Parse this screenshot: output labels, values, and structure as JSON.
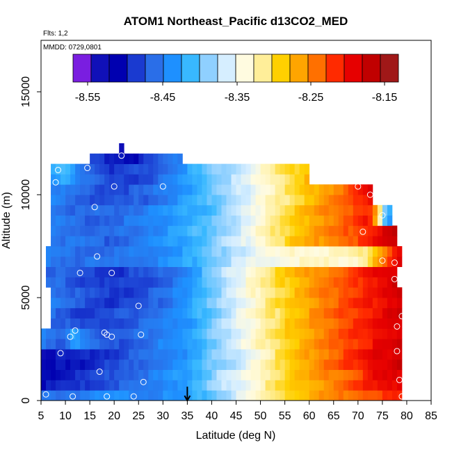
{
  "chart_data": {
    "type": "heatmap",
    "title": "ATOM1 Northeast_Pacific d13CO2_MED",
    "flights_label": "Flts: 1,2",
    "dates_label": "MMDD: 0729,0801",
    "xlabel": "Latitude (deg N)",
    "ylabel": "Altitude (m)",
    "xlim": [
      5,
      85
    ],
    "ylim": [
      0,
      17500
    ],
    "x_ticks": [
      "5",
      "10",
      "15",
      "20",
      "25",
      "30",
      "35",
      "40",
      "45",
      "50",
      "55",
      "60",
      "65",
      "70",
      "75",
      "80",
      "85"
    ],
    "y_ticks": [
      "0",
      "5000",
      "10000",
      "15000"
    ],
    "colorbar": {
      "tick_labels": [
        "-8.55",
        "-8.45",
        "-8.35",
        "-8.25",
        "-8.15"
      ],
      "colors": [
        "#7a1ee0",
        "#1010b8",
        "#0000b0",
        "#1a3ad0",
        "#2a6ee8",
        "#1e90ff",
        "#38b8ff",
        "#8fd0ff",
        "#d6eeff",
        "#fffbe0",
        "#ffee99",
        "#ffd000",
        "#ffa500",
        "#ff7000",
        "#ff2a00",
        "#e60000",
        "#c00000",
        "#a01818"
      ]
    },
    "marker": {
      "latitude": 35,
      "symbol": "down-arrow"
    },
    "cell_size": {
      "lat_deg": 1,
      "alt_m": 500
    },
    "bands": [
      {
        "alt": [
          0,
          500
        ],
        "lat": [
          5,
          79
        ],
        "anchors": [
          [
            5,
            -8.47
          ],
          [
            20,
            -8.45
          ],
          [
            34,
            -8.45
          ],
          [
            38,
            -8.42
          ],
          [
            43,
            -8.38
          ],
          [
            48,
            -8.34
          ],
          [
            53,
            -8.3
          ],
          [
            58,
            -8.27
          ],
          [
            65,
            -8.24
          ],
          [
            72,
            -8.21
          ],
          [
            79,
            -8.2
          ]
        ]
      },
      {
        "alt": [
          500,
          1500
        ],
        "lat": [
          5,
          79
        ],
        "anchors": [
          [
            5,
            -8.52
          ],
          [
            12,
            -8.51
          ],
          [
            20,
            -8.48
          ],
          [
            28,
            -8.46
          ],
          [
            33,
            -8.44
          ],
          [
            38,
            -8.41
          ],
          [
            43,
            -8.37
          ],
          [
            48,
            -8.34
          ],
          [
            53,
            -8.3
          ],
          [
            58,
            -8.27
          ],
          [
            64,
            -8.24
          ],
          [
            70,
            -8.21
          ],
          [
            74,
            -8.18
          ],
          [
            79,
            -8.17
          ]
        ]
      },
      {
        "alt": [
          1500,
          2500
        ],
        "lat": [
          5,
          79
        ],
        "anchors": [
          [
            5,
            -8.55
          ],
          [
            8,
            -8.52
          ],
          [
            14,
            -8.51
          ],
          [
            22,
            -8.49
          ],
          [
            30,
            -8.46
          ],
          [
            35,
            -8.44
          ],
          [
            40,
            -8.4
          ],
          [
            45,
            -8.37
          ],
          [
            50,
            -8.33
          ],
          [
            55,
            -8.29
          ],
          [
            60,
            -8.25
          ],
          [
            66,
            -8.22
          ],
          [
            72,
            -8.18
          ],
          [
            79,
            -8.16
          ]
        ]
      },
      {
        "alt": [
          2500,
          3500
        ],
        "lat": [
          5,
          79
        ],
        "anchors": [
          [
            5,
            -8.46
          ],
          [
            10,
            -8.48
          ],
          [
            12,
            -8.42
          ],
          [
            15,
            -8.47
          ],
          [
            20,
            -8.49
          ],
          [
            28,
            -8.46
          ],
          [
            35,
            -8.44
          ],
          [
            40,
            -8.4
          ],
          [
            45,
            -8.36
          ],
          [
            50,
            -8.32
          ],
          [
            56,
            -8.28
          ],
          [
            62,
            -8.24
          ],
          [
            70,
            -8.2
          ],
          [
            79,
            -8.16
          ]
        ]
      },
      {
        "alt": [
          3500,
          4500
        ],
        "lat": [
          7,
          79
        ],
        "anchors": [
          [
            7,
            -8.47
          ],
          [
            14,
            -8.5
          ],
          [
            20,
            -8.49
          ],
          [
            28,
            -8.47
          ],
          [
            35,
            -8.44
          ],
          [
            40,
            -8.4
          ],
          [
            45,
            -8.36
          ],
          [
            50,
            -8.32
          ],
          [
            56,
            -8.28
          ],
          [
            62,
            -8.24
          ],
          [
            70,
            -8.2
          ],
          [
            79,
            -8.16
          ]
        ]
      },
      {
        "alt": [
          4500,
          5500
        ],
        "lat": [
          7,
          79
        ],
        "anchors": [
          [
            7,
            -8.46
          ],
          [
            14,
            -8.49
          ],
          [
            20,
            -8.5
          ],
          [
            26,
            -8.49
          ],
          [
            32,
            -8.46
          ],
          [
            36,
            -8.43
          ],
          [
            40,
            -8.4
          ],
          [
            45,
            -8.36
          ],
          [
            50,
            -8.32
          ],
          [
            56,
            -8.28
          ],
          [
            62,
            -8.24
          ],
          [
            70,
            -8.2
          ],
          [
            79,
            -8.16
          ]
        ]
      },
      {
        "alt": [
          5500,
          6500
        ],
        "lat": [
          6,
          78
        ],
        "anchors": [
          [
            6,
            -8.47
          ],
          [
            14,
            -8.49
          ],
          [
            20,
            -8.5
          ],
          [
            26,
            -8.49
          ],
          [
            30,
            -8.48
          ],
          [
            34,
            -8.46
          ],
          [
            38,
            -8.42
          ],
          [
            42,
            -8.38
          ],
          [
            48,
            -8.33
          ],
          [
            54,
            -8.29
          ],
          [
            60,
            -8.25
          ],
          [
            67,
            -8.22
          ],
          [
            74,
            -8.18
          ],
          [
            78,
            -8.16
          ]
        ]
      },
      {
        "alt": [
          6500,
          7500
        ],
        "lat": [
          6,
          79
        ],
        "anchors": [
          [
            6,
            -8.46
          ],
          [
            14,
            -8.47
          ],
          [
            20,
            -8.47
          ],
          [
            26,
            -8.46
          ],
          [
            30,
            -8.45
          ],
          [
            35,
            -8.43
          ],
          [
            40,
            -8.4
          ],
          [
            45,
            -8.37
          ],
          [
            50,
            -8.35
          ],
          [
            58,
            -8.33
          ],
          [
            66,
            -8.33
          ],
          [
            70,
            -8.32
          ],
          [
            73,
            -8.28
          ],
          [
            76,
            -8.22
          ],
          [
            79,
            -8.16
          ]
        ]
      },
      {
        "alt": [
          7500,
          8500
        ],
        "lat": [
          7,
          78
        ],
        "anchors": [
          [
            7,
            -8.46
          ],
          [
            14,
            -8.47
          ],
          [
            18,
            -8.48
          ],
          [
            22,
            -8.47
          ],
          [
            28,
            -8.45
          ],
          [
            34,
            -8.43
          ],
          [
            40,
            -8.4
          ],
          [
            46,
            -8.36
          ],
          [
            52,
            -8.31
          ],
          [
            58,
            -8.27
          ],
          [
            64,
            -8.24
          ],
          [
            70,
            -8.21
          ],
          [
            74,
            -8.18
          ],
          [
            78,
            -8.15
          ]
        ]
      },
      {
        "alt": [
          8500,
          9500
        ],
        "lat": [
          7,
          77
        ],
        "anchors": [
          [
            7,
            -8.46
          ],
          [
            14,
            -8.48
          ],
          [
            20,
            -8.47
          ],
          [
            26,
            -8.46
          ],
          [
            32,
            -8.44
          ],
          [
            38,
            -8.42
          ],
          [
            44,
            -8.38
          ],
          [
            50,
            -8.33
          ],
          [
            56,
            -8.29
          ],
          [
            62,
            -8.25
          ],
          [
            68,
            -8.22
          ],
          [
            72,
            -8.19
          ],
          [
            74,
            -8.27
          ],
          [
            76,
            -8.45
          ],
          [
            77,
            -8.42
          ]
        ]
      },
      {
        "alt": [
          9500,
          10500
        ],
        "lat": [
          7,
          73
        ],
        "anchors": [
          [
            7,
            -8.45
          ],
          [
            14,
            -8.48
          ],
          [
            20,
            -8.49
          ],
          [
            26,
            -8.48
          ],
          [
            32,
            -8.45
          ],
          [
            38,
            -8.42
          ],
          [
            44,
            -8.38
          ],
          [
            50,
            -8.34
          ],
          [
            56,
            -8.3
          ],
          [
            62,
            -8.26
          ],
          [
            68,
            -8.22
          ],
          [
            73,
            -8.17
          ]
        ]
      },
      {
        "alt": [
          10500,
          11500
        ],
        "lat": [
          7,
          60
        ],
        "anchors": [
          [
            7,
            -8.44
          ],
          [
            10,
            -8.41
          ],
          [
            14,
            -8.47
          ],
          [
            20,
            -8.5
          ],
          [
            26,
            -8.49
          ],
          [
            32,
            -8.46
          ],
          [
            36,
            -8.43
          ],
          [
            40,
            -8.4
          ],
          [
            44,
            -8.38
          ],
          [
            48,
            -8.35
          ],
          [
            52,
            -8.32
          ],
          [
            56,
            -8.29
          ],
          [
            60,
            -8.27
          ]
        ]
      },
      {
        "alt": [
          11500,
          12000
        ],
        "lat": [
          15,
          34
        ],
        "anchors": [
          [
            15,
            -8.5
          ],
          [
            20,
            -8.51
          ],
          [
            24,
            -8.52
          ],
          [
            28,
            -8.49
          ],
          [
            31,
            -8.47
          ],
          [
            34,
            -8.46
          ]
        ]
      },
      {
        "alt": [
          12000,
          12500
        ],
        "lat": [
          21,
          22
        ],
        "anchors": [
          [
            21,
            -8.56
          ],
          [
            22,
            -8.56
          ]
        ]
      }
    ],
    "sample_points": [
      [
        6,
        300
      ],
      [
        9,
        2300
      ],
      [
        8,
        10600
      ],
      [
        8.5,
        11200
      ],
      [
        11,
        3100
      ],
      [
        11.5,
        200
      ],
      [
        12,
        3400
      ],
      [
        13,
        6200
      ],
      [
        14.5,
        11300
      ],
      [
        16,
        9400
      ],
      [
        16.5,
        7000
      ],
      [
        17,
        1400
      ],
      [
        18,
        3300
      ],
      [
        18.5,
        3200
      ],
      [
        18.5,
        200
      ],
      [
        19.5,
        3100
      ],
      [
        19.5,
        6200
      ],
      [
        20,
        10400
      ],
      [
        21.5,
        11900
      ],
      [
        24,
        200
      ],
      [
        25,
        4600
      ],
      [
        25.5,
        3200
      ],
      [
        26,
        900
      ],
      [
        30,
        10400
      ],
      [
        70,
        10400
      ],
      [
        71,
        8200
      ],
      [
        72.5,
        10000
      ],
      [
        75,
        9000
      ],
      [
        75,
        6800
      ],
      [
        77.5,
        6700
      ],
      [
        77.5,
        5900
      ],
      [
        78,
        2400
      ],
      [
        78,
        3600
      ],
      [
        78.5,
        1000
      ],
      [
        79,
        200
      ],
      [
        79,
        4100
      ]
    ]
  }
}
